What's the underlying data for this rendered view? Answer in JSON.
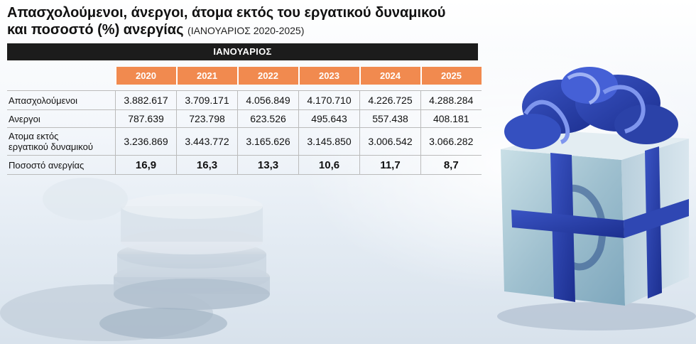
{
  "title": {
    "line1": "Απασχολούμενοι, άνεργοι, άτομα εκτός του εργατικού δυναμικού",
    "line2": "και ποσοστό (%) ανεργίας",
    "note": "(ΙΑΝΟΥΑΡΙΟΣ 2020-2025)"
  },
  "month_bar": "ΙΑΝΟΥΑΡΙΟΣ",
  "years": [
    "2020",
    "2021",
    "2022",
    "2023",
    "2024",
    "2025"
  ],
  "rows": [
    {
      "label": "Απασχολούμενοι",
      "values": [
        "3.882.617",
        "3.709.171",
        "4.056.849",
        "4.170.710",
        "4.226.725",
        "4.288.284"
      ]
    },
    {
      "label": "Ανεργοι",
      "values": [
        "787.639",
        "723.798",
        "623.526",
        "495.643",
        "557.438",
        "408.181"
      ]
    },
    {
      "label_line1": "Ατομα εκτός",
      "label_line2": "εργατικού δυναμικού",
      "values": [
        "3.236.869",
        "3.443.772",
        "3.165.626",
        "3.145.850",
        "3.006.542",
        "3.066.282"
      ]
    },
    {
      "label": "Ποσοστό ανεργίας",
      "values": [
        "16,9",
        "16,3",
        "13,3",
        "10,6",
        "11,7",
        "8,7"
      ]
    }
  ],
  "colors": {
    "header_bar": "#1c1c1c",
    "year_header": "#f18a4f"
  }
}
